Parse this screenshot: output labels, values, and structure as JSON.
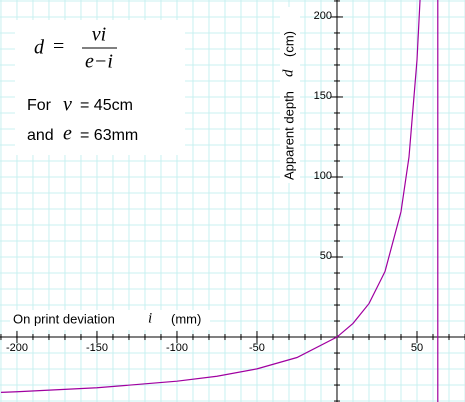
{
  "chart_data": {
    "type": "line",
    "formula": {
      "lhs": "d",
      "eq": "=",
      "numerator": "vi",
      "denominator": "e−i"
    },
    "params": [
      [
        "For",
        "v",
        "= 45cm"
      ],
      [
        "and",
        "e",
        "= 63mm"
      ]
    ],
    "x_label": [
      "On print deviation",
      "i",
      "(mm)"
    ],
    "y_label": [
      "Apparent depth",
      "d",
      "(cm)"
    ],
    "xlim": [
      -210.6,
      80
    ],
    "ylim": [
      -40.6,
      210.6
    ],
    "xticks": [
      -200,
      -150,
      -100,
      -50,
      50
    ],
    "yticks": [
      50,
      100,
      150,
      200
    ],
    "grid_step": 10,
    "grid": true,
    "grid_color": "#c8f0f0",
    "series": [
      {
        "color": "#a000a0",
        "x": [
          -210,
          -200,
          -150,
          -100,
          -75,
          -50,
          -25,
          0,
          10,
          20,
          30,
          40,
          45,
          50,
          52
        ],
        "values": [
          -34.6,
          -34.2,
          -31.7,
          -27.6,
          -24.5,
          -19.9,
          -12.8,
          0,
          8.5,
          20.9,
          40.9,
          78.3,
          112.5,
          173.1,
          212.7
        ]
      }
    ],
    "asymptote_x": 63
  }
}
